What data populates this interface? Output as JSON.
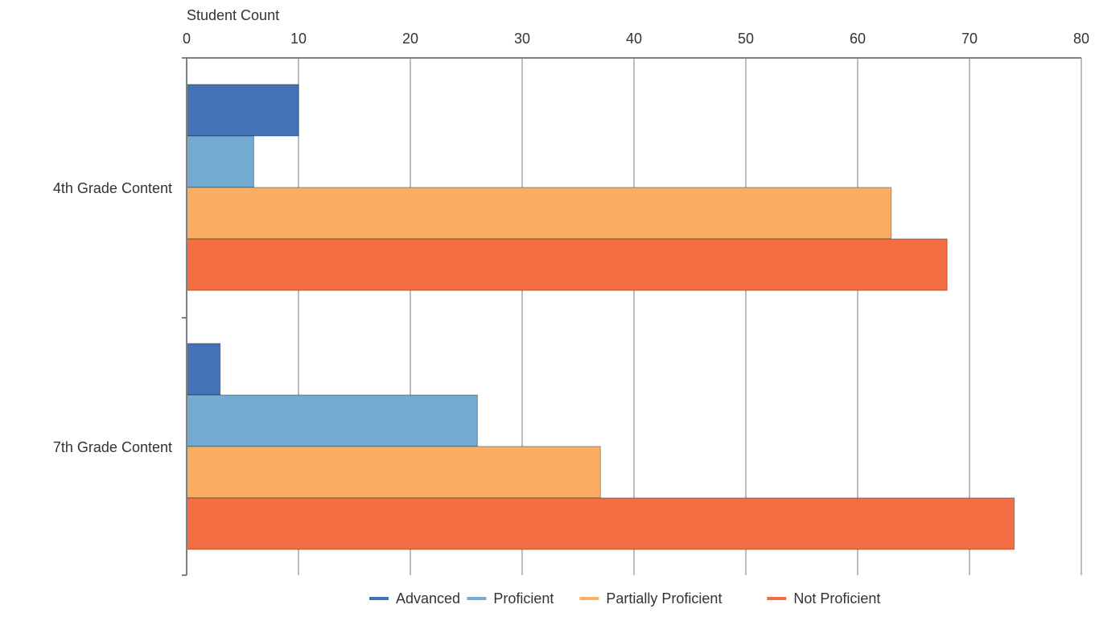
{
  "chart_data": {
    "type": "bar",
    "orientation": "horizontal",
    "title": "",
    "xlabel": "Student Count",
    "ylabel": "",
    "xlim": [
      0,
      80
    ],
    "x_ticks": [
      "0",
      "10",
      "20",
      "30",
      "40",
      "50",
      "60",
      "70",
      "80"
    ],
    "x_tick_values": [
      0,
      10,
      20,
      30,
      40,
      50,
      60,
      70,
      80
    ],
    "axis_position": "top",
    "grid": true,
    "legend_position": "bottom",
    "categories": [
      "4th Grade Content",
      "7th Grade Content"
    ],
    "series": [
      {
        "name": "Advanced",
        "color": "#4472b6",
        "values": [
          10,
          3
        ]
      },
      {
        "name": "Proficient",
        "color": "#73abd2",
        "values": [
          6,
          26
        ]
      },
      {
        "name": "Partially Proficient",
        "color": "#fbad61",
        "values": [
          63,
          37
        ]
      },
      {
        "name": "Not Proficient",
        "color": "#f36f43",
        "values": [
          68,
          74
        ]
      }
    ]
  }
}
